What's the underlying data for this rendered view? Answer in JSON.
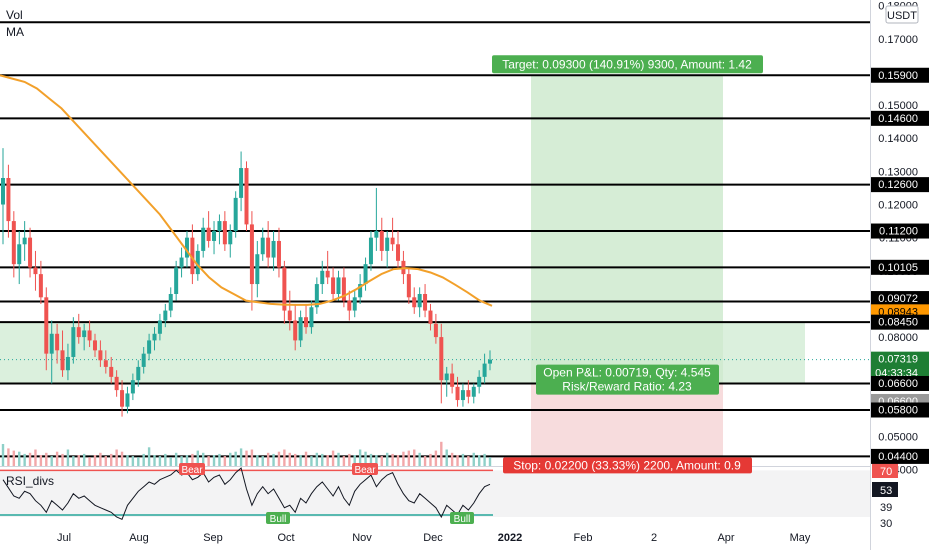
{
  "chart_data": {
    "type": "candlestick",
    "symbol": "",
    "indicators": {
      "volume_label": "Vol",
      "ma_label": "MA",
      "rsi_label": "RSI_divs"
    },
    "currency_label": "USDT",
    "price_axis": {
      "ticks": [
        "0.18000",
        "0.17000",
        "0.16000",
        "0.15000",
        "0.14000",
        "0.13000",
        "0.12000",
        "0.11000",
        "0.10000",
        "0.09000",
        "0.08000",
        "0.07000",
        "0.06000",
        "0.05000",
        "0.04000"
      ],
      "range": [
        0.0405,
        0.1805
      ]
    },
    "horizontal_levels": [
      0.175,
      0.159,
      0.146,
      0.126,
      0.112,
      0.10105,
      0.09072,
      0.0845,
      0.066,
      0.058,
      0.044
    ],
    "level_tags": [
      {
        "value": 0.159,
        "text": "0.15900",
        "style": "black"
      },
      {
        "value": 0.146,
        "text": "0.14600",
        "style": "black"
      },
      {
        "value": 0.126,
        "text": "0.12600",
        "style": "black"
      },
      {
        "value": 0.112,
        "text": "0.11200",
        "style": "black"
      },
      {
        "value": 0.10105,
        "text": "0.10105",
        "style": "black"
      },
      {
        "value": 0.09072,
        "text": "0.09072",
        "style": "black"
      },
      {
        "value": 0.08943,
        "text": "0.08943",
        "style": "orange"
      },
      {
        "value": 0.0845,
        "text": "0.08450",
        "style": "black"
      },
      {
        "value": 0.07319,
        "text": "0.07319",
        "sub": "04:33:34",
        "style": "green"
      },
      {
        "value": 0.066,
        "text": "0.06600",
        "style": "black"
      },
      {
        "value": 0.066,
        "text": "0.06600",
        "style": "gray"
      },
      {
        "value": 0.058,
        "text": "0.05800",
        "style": "black"
      },
      {
        "value": 0.044,
        "text": "0.04400",
        "style": "black"
      }
    ],
    "position": {
      "entry": 0.066,
      "target": 0.159,
      "stop": 0.044,
      "target_label": "Target: 0.09300 (140.91%) 9300, Amount: 1.42",
      "stop_label": "Stop: 0.02200 (33.33%) 2200, Amount: 0.9",
      "pnl_label": "Open P&L: 0.00719, Qty: 4.545",
      "rr_label": "Risk/Reward Ratio: 4.23"
    },
    "x_axis_labels": [
      "Jul",
      "Aug",
      "Sep",
      "Oct",
      "Nov",
      "Dec",
      "2022",
      "Feb",
      "2",
      "Apr",
      "May"
    ],
    "candles": [
      [
        0.12,
        0.137,
        0.108,
        0.128
      ],
      [
        0.128,
        0.132,
        0.11,
        0.115
      ],
      [
        0.115,
        0.118,
        0.098,
        0.102
      ],
      [
        0.102,
        0.112,
        0.096,
        0.108
      ],
      [
        0.108,
        0.115,
        0.103,
        0.11
      ],
      [
        0.11,
        0.113,
        0.098,
        0.101
      ],
      [
        0.101,
        0.106,
        0.094,
        0.099
      ],
      [
        0.099,
        0.103,
        0.09,
        0.092
      ],
      [
        0.092,
        0.095,
        0.07,
        0.075
      ],
      [
        0.075,
        0.085,
        0.066,
        0.081
      ],
      [
        0.081,
        0.084,
        0.072,
        0.076
      ],
      [
        0.076,
        0.082,
        0.068,
        0.07
      ],
      [
        0.07,
        0.078,
        0.067,
        0.074
      ],
      [
        0.074,
        0.086,
        0.072,
        0.083
      ],
      [
        0.083,
        0.087,
        0.078,
        0.08
      ],
      [
        0.08,
        0.084,
        0.076,
        0.082
      ],
      [
        0.082,
        0.085,
        0.077,
        0.079
      ],
      [
        0.079,
        0.081,
        0.074,
        0.076
      ],
      [
        0.076,
        0.079,
        0.071,
        0.073
      ],
      [
        0.073,
        0.076,
        0.069,
        0.071
      ],
      [
        0.071,
        0.074,
        0.066,
        0.068
      ],
      [
        0.068,
        0.07,
        0.062,
        0.064
      ],
      [
        0.064,
        0.067,
        0.056,
        0.059
      ],
      [
        0.059,
        0.065,
        0.057,
        0.063
      ],
      [
        0.063,
        0.069,
        0.061,
        0.067
      ],
      [
        0.067,
        0.073,
        0.065,
        0.071
      ],
      [
        0.071,
        0.077,
        0.069,
        0.075
      ],
      [
        0.075,
        0.081,
        0.073,
        0.079
      ],
      [
        0.079,
        0.083,
        0.076,
        0.081
      ],
      [
        0.081,
        0.087,
        0.079,
        0.085
      ],
      [
        0.085,
        0.09,
        0.083,
        0.088
      ],
      [
        0.088,
        0.095,
        0.086,
        0.093
      ],
      [
        0.093,
        0.103,
        0.091,
        0.101
      ],
      [
        0.101,
        0.107,
        0.098,
        0.104
      ],
      [
        0.104,
        0.112,
        0.101,
        0.11
      ],
      [
        0.11,
        0.114,
        0.096,
        0.099
      ],
      [
        0.099,
        0.108,
        0.097,
        0.106
      ],
      [
        0.106,
        0.116,
        0.104,
        0.113
      ],
      [
        0.113,
        0.118,
        0.107,
        0.109
      ],
      [
        0.109,
        0.115,
        0.105,
        0.112
      ],
      [
        0.112,
        0.117,
        0.108,
        0.115
      ],
      [
        0.115,
        0.118,
        0.106,
        0.108
      ],
      [
        0.108,
        0.114,
        0.104,
        0.112
      ],
      [
        0.112,
        0.124,
        0.11,
        0.122
      ],
      [
        0.122,
        0.136,
        0.118,
        0.131
      ],
      [
        0.131,
        0.133,
        0.112,
        0.114
      ],
      [
        0.114,
        0.118,
        0.088,
        0.096
      ],
      [
        0.096,
        0.109,
        0.092,
        0.105
      ],
      [
        0.105,
        0.113,
        0.103,
        0.11
      ],
      [
        0.11,
        0.115,
        0.101,
        0.104
      ],
      [
        0.104,
        0.112,
        0.1,
        0.109
      ],
      [
        0.109,
        0.113,
        0.098,
        0.101
      ],
      [
        0.101,
        0.103,
        0.084,
        0.088
      ],
      [
        0.088,
        0.094,
        0.082,
        0.085
      ],
      [
        0.085,
        0.09,
        0.076,
        0.079
      ],
      [
        0.079,
        0.088,
        0.077,
        0.086
      ],
      [
        0.086,
        0.09,
        0.081,
        0.083
      ],
      [
        0.083,
        0.091,
        0.081,
        0.089
      ],
      [
        0.089,
        0.098,
        0.087,
        0.096
      ],
      [
        0.096,
        0.103,
        0.093,
        0.1
      ],
      [
        0.1,
        0.106,
        0.096,
        0.098
      ],
      [
        0.098,
        0.101,
        0.091,
        0.093
      ],
      [
        0.093,
        0.1,
        0.091,
        0.098
      ],
      [
        0.098,
        0.101,
        0.089,
        0.091
      ],
      [
        0.091,
        0.094,
        0.085,
        0.088
      ],
      [
        0.088,
        0.094,
        0.086,
        0.092
      ],
      [
        0.092,
        0.099,
        0.09,
        0.096
      ],
      [
        0.096,
        0.104,
        0.094,
        0.102
      ],
      [
        0.102,
        0.112,
        0.1,
        0.11
      ],
      [
        0.11,
        0.125,
        0.106,
        0.112
      ],
      [
        0.112,
        0.116,
        0.103,
        0.106
      ],
      [
        0.106,
        0.112,
        0.101,
        0.11
      ],
      [
        0.11,
        0.116,
        0.106,
        0.108
      ],
      [
        0.108,
        0.112,
        0.101,
        0.103
      ],
      [
        0.103,
        0.106,
        0.096,
        0.099
      ],
      [
        0.099,
        0.101,
        0.09,
        0.092
      ],
      [
        0.092,
        0.095,
        0.087,
        0.089
      ],
      [
        0.089,
        0.095,
        0.086,
        0.093
      ],
      [
        0.093,
        0.096,
        0.086,
        0.088
      ],
      [
        0.088,
        0.09,
        0.082,
        0.084
      ],
      [
        0.084,
        0.087,
        0.078,
        0.08
      ],
      [
        0.08,
        0.084,
        0.06,
        0.067
      ],
      [
        0.067,
        0.071,
        0.062,
        0.069
      ],
      [
        0.069,
        0.072,
        0.063,
        0.065
      ],
      [
        0.065,
        0.068,
        0.059,
        0.061
      ],
      [
        0.061,
        0.066,
        0.059,
        0.064
      ],
      [
        0.064,
        0.067,
        0.06,
        0.062
      ],
      [
        0.062,
        0.066,
        0.06,
        0.065
      ],
      [
        0.065,
        0.07,
        0.063,
        0.068
      ],
      [
        0.068,
        0.075,
        0.066,
        0.072
      ],
      [
        0.072,
        0.076,
        0.07,
        0.07319
      ]
    ],
    "ma": [
      0.159,
      0.158,
      0.157,
      0.155,
      0.152,
      0.149,
      0.145,
      0.141,
      0.137,
      0.133,
      0.129,
      0.125,
      0.121,
      0.117,
      0.112,
      0.107,
      0.102,
      0.098,
      0.095,
      0.093,
      0.091,
      0.0905,
      0.09,
      0.0898,
      0.0897,
      0.0897,
      0.09,
      0.091,
      0.0925,
      0.0945,
      0.0968,
      0.099,
      0.1005,
      0.1008,
      0.1005,
      0.0995,
      0.098,
      0.0958,
      0.0935,
      0.091,
      0.08943
    ],
    "volume": [
      40,
      32,
      28,
      26,
      22,
      24,
      30,
      20,
      24,
      18,
      26,
      22,
      30,
      18,
      20,
      22,
      16,
      20,
      24,
      18,
      22,
      30,
      26,
      20,
      18,
      16,
      22,
      34,
      20,
      18,
      22,
      16,
      24,
      18,
      20,
      22,
      28,
      24,
      18,
      20,
      22,
      18,
      24,
      26,
      32,
      28,
      30,
      20,
      18,
      24,
      22,
      26,
      30,
      24,
      22,
      20,
      26,
      18,
      24,
      22,
      20,
      28,
      24,
      18,
      22,
      20,
      30,
      26,
      22,
      20,
      18,
      24,
      22,
      20,
      26,
      28,
      30,
      24,
      18,
      22,
      28,
      44,
      30,
      24,
      20,
      22,
      18,
      24,
      20,
      22,
      16
    ],
    "rsi_axis": [
      "70",
      "53",
      "39",
      "30"
    ],
    "rsi_labels": {
      "bear": "Bear",
      "bull": "Bull"
    },
    "rsi": [
      62,
      55,
      48,
      46,
      52,
      50,
      44,
      40,
      34,
      44,
      40,
      36,
      42,
      50,
      46,
      48,
      44,
      40,
      38,
      36,
      34,
      30,
      28,
      40,
      46,
      52,
      56,
      60,
      58,
      62,
      64,
      66,
      70,
      66,
      68,
      62,
      64,
      68,
      60,
      64,
      66,
      58,
      62,
      68,
      72,
      54,
      40,
      50,
      56,
      50,
      54,
      46,
      38,
      40,
      34,
      46,
      42,
      50,
      56,
      60,
      54,
      48,
      56,
      46,
      40,
      52,
      58,
      62,
      66,
      56,
      62,
      66,
      68,
      58,
      50,
      44,
      42,
      50,
      46,
      42,
      38,
      30,
      40,
      36,
      32,
      40,
      36,
      42,
      50,
      56,
      58
    ]
  }
}
